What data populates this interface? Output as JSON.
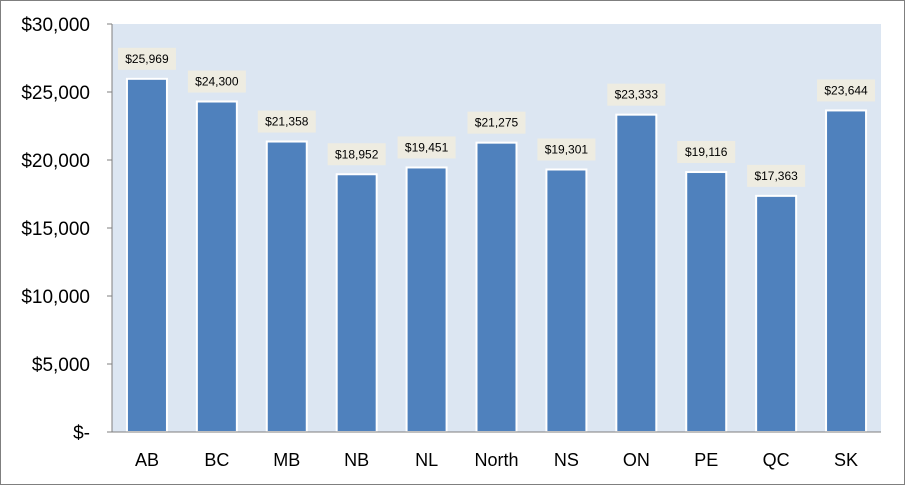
{
  "chart_data": {
    "type": "bar",
    "categories": [
      "AB",
      "BC",
      "MB",
      "NB",
      "NL",
      "North",
      "NS",
      "ON",
      "PE",
      "QC",
      "SK"
    ],
    "values": [
      25969,
      24300,
      21358,
      18952,
      19451,
      21275,
      19301,
      23333,
      19116,
      17363,
      23644
    ],
    "data_labels": [
      "$25,969",
      "$24,300",
      "$21,358",
      "$18,952",
      "$19,451",
      "$21,275",
      "$19,301",
      "$23,333",
      "$19,116",
      "$17,363",
      "$23,644"
    ],
    "y_ticks": [
      0,
      5000,
      10000,
      15000,
      20000,
      25000,
      30000
    ],
    "y_tick_labels": [
      "$-",
      "$5,000",
      "$10,000",
      "$15,000",
      "$20,000",
      "$25,000",
      "$30,000"
    ],
    "ylim": [
      0,
      30000
    ],
    "grid": false,
    "legend": "none",
    "colors": {
      "bar": "#4f81bd",
      "bar_outline": "#ffffff",
      "plot_background": "#dce6f2",
      "label_background": "#eeece1",
      "axis": "#7f7f7f"
    }
  }
}
